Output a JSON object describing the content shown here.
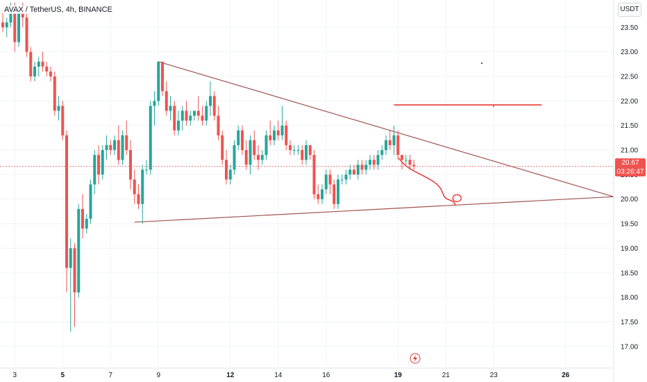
{
  "header": {
    "symbol": "AVAX / TetherUS, 4h, BINANCE"
  },
  "currency_label": "USDT",
  "last_price": {
    "value": "20.67",
    "countdown": "03:26:47"
  },
  "colors": {
    "up": "#26a69a",
    "down": "#ef5350",
    "trendline": "#a0524f",
    "drawing": "#e53935",
    "grid": "#f0f3fa",
    "last_line": "#ef5350"
  },
  "chart_data": {
    "type": "candlestick",
    "y_axis": {
      "min": 16.7,
      "max": 24.0,
      "ticks": [
        "17.00",
        "17.50",
        "18.00",
        "18.50",
        "19.00",
        "19.50",
        "20.00",
        "20.50",
        "21.00",
        "21.50",
        "22.00",
        "22.50",
        "23.00",
        "23.50"
      ]
    },
    "x_axis": {
      "ticks": [
        {
          "label": "3",
          "bar": 3,
          "bold": false
        },
        {
          "label": "5",
          "bar": 15,
          "bold": true
        },
        {
          "label": "7",
          "bar": 27,
          "bold": false
        },
        {
          "label": "9",
          "bar": 39,
          "bold": false
        },
        {
          "label": "12",
          "bar": 57,
          "bold": true
        },
        {
          "label": "14",
          "bar": 69,
          "bold": false
        },
        {
          "label": "16",
          "bar": 81,
          "bold": false
        },
        {
          "label": "19",
          "bar": 99,
          "bold": true
        },
        {
          "label": "21",
          "bar": 111,
          "bold": false
        },
        {
          "label": "23",
          "bar": 123,
          "bold": false
        },
        {
          "label": "26",
          "bar": 141,
          "bold": true
        }
      ]
    },
    "ohlc": [
      [
        23.6,
        23.8,
        23.4,
        23.5
      ],
      [
        23.5,
        23.7,
        23.3,
        23.6
      ],
      [
        23.6,
        24.0,
        23.5,
        23.8
      ],
      [
        23.8,
        24.0,
        23.0,
        23.2
      ],
      [
        23.2,
        23.9,
        23.1,
        23.8
      ],
      [
        23.8,
        24.0,
        23.5,
        23.7
      ],
      [
        23.7,
        23.8,
        22.9,
        23.0
      ],
      [
        23.0,
        23.1,
        22.4,
        22.5
      ],
      [
        22.5,
        22.8,
        22.4,
        22.7
      ],
      [
        22.7,
        22.9,
        22.5,
        22.8
      ],
      [
        22.8,
        23.0,
        22.6,
        22.7
      ],
      [
        22.7,
        22.8,
        22.5,
        22.6
      ],
      [
        22.6,
        22.7,
        22.4,
        22.5
      ],
      [
        22.5,
        22.6,
        21.7,
        21.8
      ],
      [
        21.8,
        22.1,
        21.6,
        21.9
      ],
      [
        21.9,
        22.0,
        21.2,
        21.3
      ],
      [
        21.3,
        21.4,
        18.1,
        18.6
      ],
      [
        18.6,
        19.2,
        17.3,
        19.0
      ],
      [
        19.0,
        19.1,
        17.4,
        18.1
      ],
      [
        18.1,
        19.9,
        18.0,
        19.8
      ],
      [
        19.8,
        20.1,
        19.2,
        19.4
      ],
      [
        19.4,
        19.7,
        19.3,
        19.6
      ],
      [
        19.6,
        20.4,
        19.5,
        20.3
      ],
      [
        20.3,
        21.0,
        20.1,
        20.9
      ],
      [
        20.9,
        21.1,
        20.3,
        20.5
      ],
      [
        20.5,
        21.1,
        20.4,
        21.0
      ],
      [
        21.0,
        21.3,
        20.8,
        21.1
      ],
      [
        21.1,
        21.2,
        20.9,
        21.0
      ],
      [
        21.0,
        21.3,
        20.9,
        21.2
      ],
      [
        21.2,
        21.5,
        20.7,
        20.8
      ],
      [
        20.8,
        21.4,
        20.7,
        21.3
      ],
      [
        21.3,
        21.6,
        20.9,
        21.0
      ],
      [
        21.0,
        21.2,
        20.2,
        20.4
      ],
      [
        20.4,
        20.6,
        19.9,
        20.1
      ],
      [
        20.1,
        20.3,
        19.8,
        19.9
      ],
      [
        19.9,
        20.7,
        19.5,
        20.6
      ],
      [
        20.6,
        20.8,
        20.5,
        20.6
      ],
      [
        20.6,
        22.0,
        20.5,
        21.9
      ],
      [
        21.9,
        22.2,
        21.5,
        22.0
      ],
      [
        22.0,
        22.8,
        21.9,
        22.8
      ],
      [
        22.8,
        22.8,
        22.1,
        22.2
      ],
      [
        22.2,
        22.4,
        21.7,
        21.8
      ],
      [
        21.8,
        22.1,
        21.6,
        21.9
      ],
      [
        21.9,
        22.0,
        21.3,
        21.4
      ],
      [
        21.4,
        21.8,
        21.3,
        21.6
      ],
      [
        21.6,
        21.9,
        21.4,
        21.8
      ],
      [
        21.8,
        22.0,
        21.5,
        21.6
      ],
      [
        21.6,
        21.8,
        21.5,
        21.7
      ],
      [
        21.7,
        21.8,
        21.6,
        21.8
      ],
      [
        21.8,
        22.1,
        21.6,
        21.7
      ],
      [
        21.7,
        21.9,
        21.5,
        21.6
      ],
      [
        21.6,
        22.0,
        21.5,
        21.9
      ],
      [
        21.9,
        22.4,
        21.7,
        22.1
      ],
      [
        22.1,
        22.2,
        21.6,
        21.7
      ],
      [
        21.7,
        21.9,
        21.2,
        21.3
      ],
      [
        21.3,
        21.4,
        20.7,
        20.8
      ],
      [
        20.8,
        21.0,
        20.3,
        20.4
      ],
      [
        20.4,
        20.7,
        20.3,
        20.6
      ],
      [
        20.6,
        21.2,
        20.5,
        21.1
      ],
      [
        21.1,
        21.5,
        21.0,
        21.4
      ],
      [
        21.4,
        21.5,
        20.9,
        21.0
      ],
      [
        21.0,
        21.2,
        20.6,
        20.7
      ],
      [
        20.7,
        21.3,
        20.5,
        21.2
      ],
      [
        21.2,
        21.4,
        20.8,
        20.9
      ],
      [
        20.9,
        21.1,
        20.6,
        20.8
      ],
      [
        20.8,
        21.0,
        20.7,
        20.9
      ],
      [
        20.9,
        21.4,
        20.8,
        21.3
      ],
      [
        21.3,
        21.6,
        21.1,
        21.2
      ],
      [
        21.2,
        21.5,
        21.1,
        21.4
      ],
      [
        21.4,
        21.6,
        21.2,
        21.3
      ],
      [
        21.3,
        21.9,
        21.2,
        21.5
      ],
      [
        21.5,
        21.6,
        21.0,
        21.1
      ],
      [
        21.1,
        21.2,
        20.9,
        21.0
      ],
      [
        21.0,
        21.1,
        20.9,
        21.0
      ],
      [
        21.0,
        21.1,
        20.9,
        21.0
      ],
      [
        21.0,
        21.1,
        20.7,
        20.8
      ],
      [
        20.8,
        21.2,
        20.7,
        21.1
      ],
      [
        21.1,
        21.1,
        20.8,
        20.9
      ],
      [
        20.9,
        21.0,
        20.0,
        20.1
      ],
      [
        20.1,
        20.3,
        19.9,
        20.0
      ],
      [
        20.0,
        20.3,
        19.9,
        20.2
      ],
      [
        20.2,
        20.6,
        20.1,
        20.5
      ],
      [
        20.5,
        20.6,
        20.1,
        20.3
      ],
      [
        20.3,
        20.4,
        19.8,
        19.9
      ],
      [
        19.9,
        20.5,
        19.8,
        20.4
      ],
      [
        20.4,
        20.5,
        20.3,
        20.4
      ],
      [
        20.4,
        20.6,
        20.3,
        20.5
      ],
      [
        20.5,
        20.7,
        20.4,
        20.6
      ],
      [
        20.6,
        20.7,
        20.5,
        20.5
      ],
      [
        20.5,
        20.8,
        20.4,
        20.7
      ],
      [
        20.7,
        20.8,
        20.5,
        20.6
      ],
      [
        20.6,
        20.8,
        20.5,
        20.7
      ],
      [
        20.7,
        20.9,
        20.6,
        20.8
      ],
      [
        20.8,
        20.9,
        20.6,
        20.7
      ],
      [
        20.7,
        21.0,
        20.6,
        20.9
      ],
      [
        20.9,
        21.1,
        20.8,
        21.0
      ],
      [
        21.0,
        21.3,
        20.9,
        21.2
      ],
      [
        21.2,
        21.4,
        21.0,
        21.1
      ],
      [
        21.1,
        21.5,
        20.9,
        21.3
      ],
      [
        21.3,
        21.4,
        20.8,
        20.9
      ],
      [
        20.9,
        20.9,
        20.6,
        20.8
      ],
      [
        20.8,
        20.9,
        20.7,
        20.8
      ],
      [
        20.8,
        20.9,
        20.6,
        20.7
      ],
      [
        20.7,
        20.8,
        20.6,
        20.67
      ]
    ],
    "trendlines": [
      {
        "name": "upper-resistance",
        "from": {
          "bar": 39,
          "price": 22.8
        },
        "to": {
          "bar": 153,
          "price": 20.05
        }
      },
      {
        "name": "lower-support",
        "from": {
          "bar": 33,
          "price": 19.53
        },
        "to": {
          "bar": 153,
          "price": 20.05
        }
      }
    ],
    "drawings": [
      {
        "name": "target-line",
        "from": {
          "bar": 98,
          "price": 21.92
        },
        "to": {
          "bar": 135,
          "price": 21.92
        }
      }
    ],
    "grid": true
  }
}
